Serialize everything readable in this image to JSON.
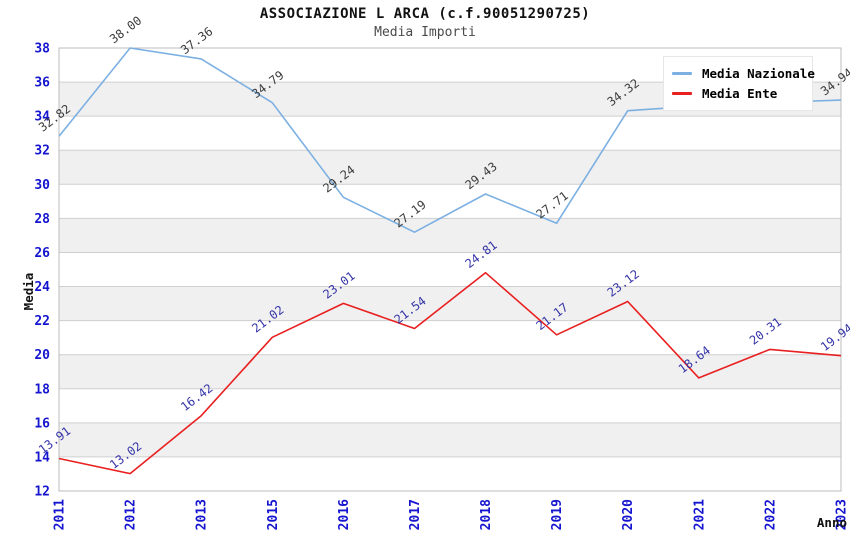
{
  "title": "ASSOCIAZIONE L ARCA (c.f.90051290725)",
  "subtitle": "Media Importi",
  "legend": {
    "items": [
      {
        "label": "Media Nazionale",
        "color": "#7cb0e2"
      },
      {
        "label": "Media Ente",
        "color": "#e82020"
      }
    ]
  },
  "axis_style": {
    "tick_label_color": "#1515d0",
    "grid_line_color": "#cfcfcf",
    "plot_border_color": "#bdbdbd",
    "band_fill_color": "#f0f0f0",
    "axis_title_color": "#111111"
  },
  "chart_data": {
    "type": "line",
    "title": "ASSOCIAZIONE L ARCA (c.f.90051290725)",
    "subtitle": "Media Importi",
    "xlabel": "Anno",
    "ylabel": "Media",
    "ylim": [
      12,
      38
    ],
    "ytick_step": 2,
    "ytick_labels": [
      "12",
      "14",
      "16",
      "18",
      "20",
      "22",
      "24",
      "26",
      "28",
      "30",
      "32",
      "34",
      "36",
      "38"
    ],
    "grid": true,
    "alternating_bands": true,
    "legend_position": "top-right",
    "categories": [
      "2011",
      "2012",
      "2013",
      "2015",
      "2016",
      "2017",
      "2018",
      "2019",
      "2020",
      "2021",
      "2022",
      "2023"
    ],
    "series": [
      {
        "name": "Media Nazionale",
        "color": "#7cb0e2",
        "label_color": "#3c3c3c",
        "values": [
          32.82,
          38.0,
          37.36,
          34.79,
          29.24,
          27.19,
          29.43,
          27.71,
          34.32,
          34.6,
          34.8,
          34.94
        ],
        "labels": [
          "32.82",
          "38.00",
          "37.36",
          "34.79",
          "29.24",
          "27.19",
          "29.43",
          "27.71",
          "34.32",
          "",
          "",
          "34.94"
        ]
      },
      {
        "name": "Media Ente",
        "color": "#e82020",
        "label_color": "#3434a8",
        "values": [
          13.91,
          13.02,
          16.42,
          21.02,
          23.01,
          21.54,
          24.81,
          21.17,
          23.12,
          18.64,
          20.31,
          19.94
        ],
        "labels": [
          "13.91",
          "13.02",
          "16.42",
          "21.02",
          "23.01",
          "21.54",
          "24.81",
          "21.17",
          "23.12",
          "18.64",
          "20.31",
          "19.94"
        ]
      }
    ]
  }
}
